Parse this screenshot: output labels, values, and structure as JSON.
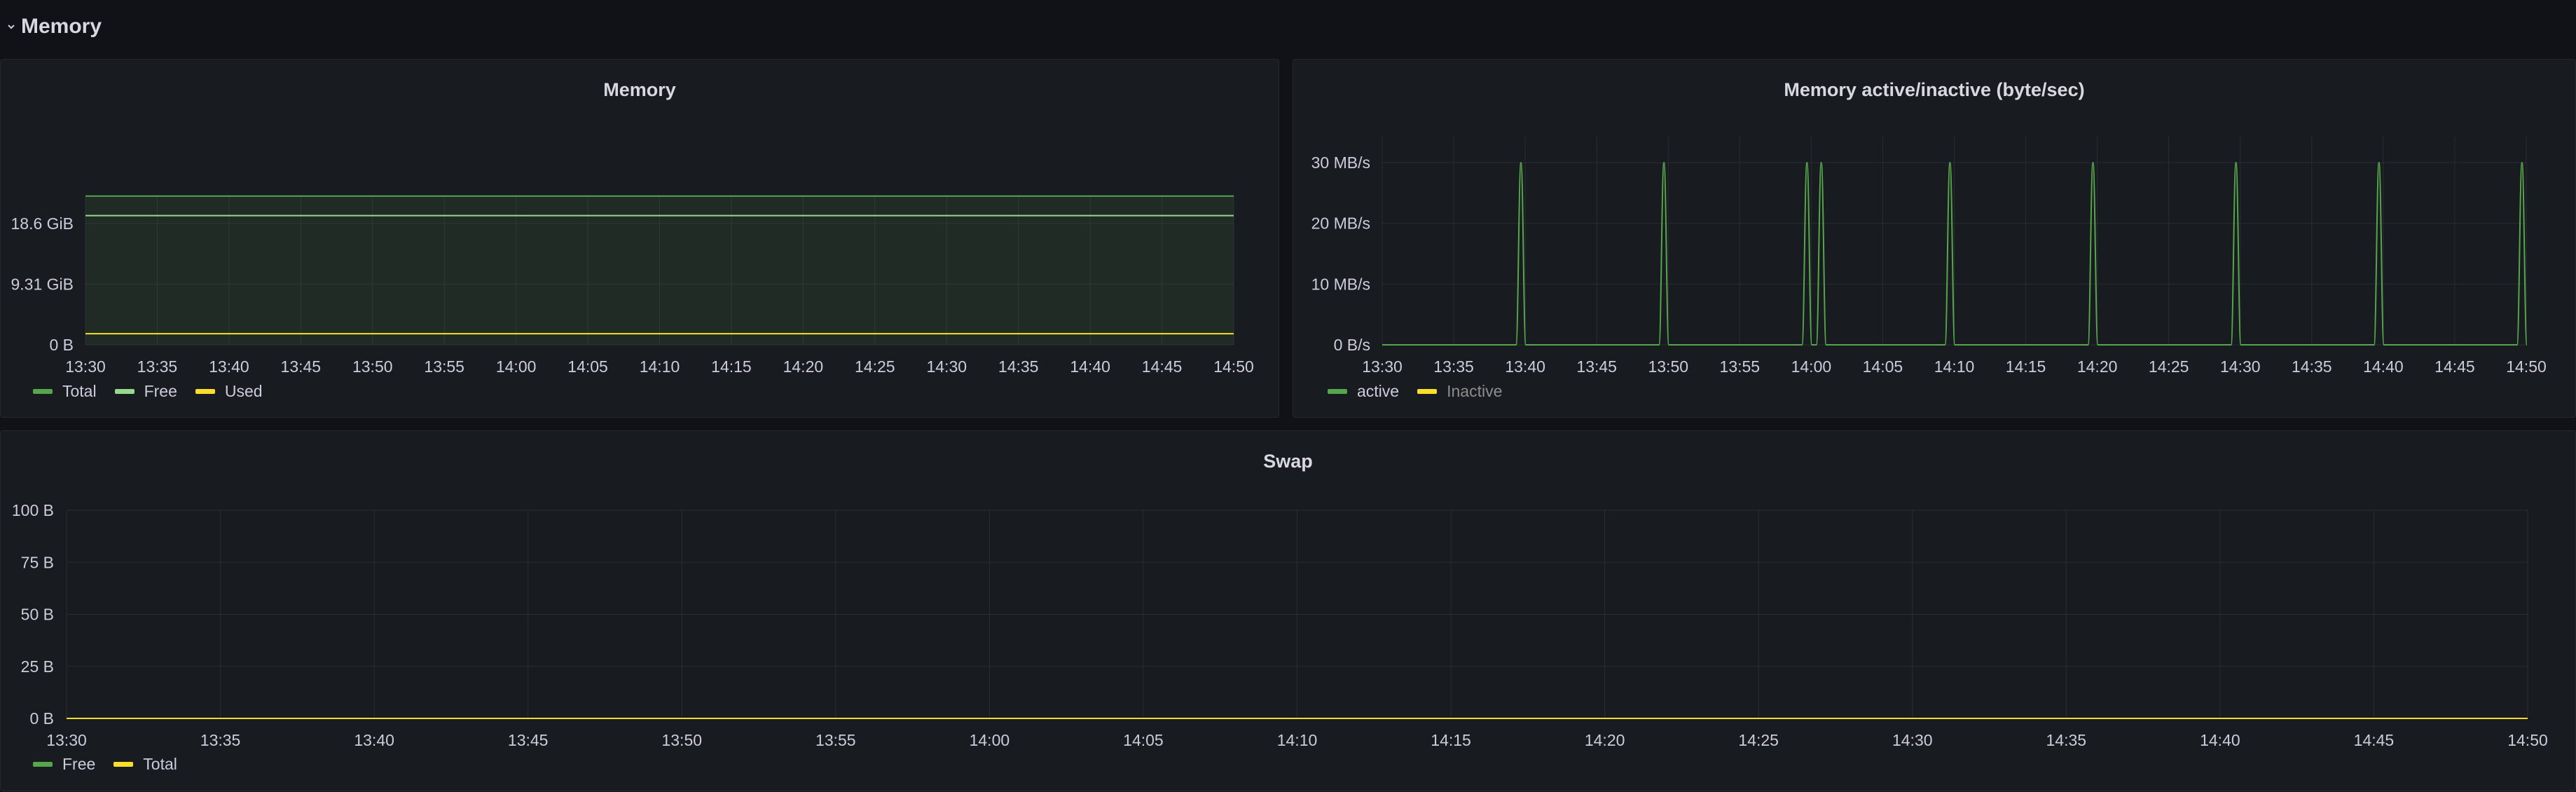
{
  "row": {
    "title": "Memory",
    "collapse_icon": "chevron-down-icon"
  },
  "colors": {
    "green": "#56a64b",
    "light_green": "#96d98d",
    "yellow": "#fade2a",
    "grid": "#2a2d33",
    "background": "#111217",
    "panel": "#181b1f"
  },
  "panels": {
    "memory": {
      "title": "Memory",
      "legend": [
        {
          "label": "Total",
          "color": "#56a64b"
        },
        {
          "label": "Free",
          "color": "#96d98d"
        },
        {
          "label": "Used",
          "color": "#fade2a"
        }
      ]
    },
    "active": {
      "title": "Memory active/inactive (byte/sec)",
      "legend": [
        {
          "label": "active",
          "color": "#56a64b"
        },
        {
          "label": "Inactive",
          "color": "#fade2a",
          "muted": true
        }
      ]
    },
    "swap": {
      "title": "Swap",
      "legend": [
        {
          "label": "Free",
          "color": "#56a64b"
        },
        {
          "label": "Total",
          "color": "#fade2a"
        }
      ]
    }
  },
  "chart_data": [
    {
      "id": "memory",
      "type": "area",
      "title": "Memory",
      "x_ticks": [
        "13:30",
        "13:35",
        "13:40",
        "13:45",
        "13:50",
        "13:55",
        "14:00",
        "14:05",
        "14:10",
        "14:15",
        "14:20",
        "14:25",
        "14:30",
        "14:35",
        "14:40",
        "14:45",
        "14:50"
      ],
      "y_ticks": [
        "0 B",
        "9.31 GiB",
        "18.6 GiB"
      ],
      "y_tick_values": [
        0,
        9.31,
        18.6
      ],
      "y_unit": "GiB",
      "ylim": [
        0,
        23.2
      ],
      "grid": true,
      "legend_position": "bottom-left",
      "series": [
        {
          "name": "Total",
          "color": "#56a64b",
          "fill": true,
          "values": [
            22.8,
            22.8
          ]
        },
        {
          "name": "Free",
          "color": "#96d98d",
          "fill": false,
          "values": [
            19.8,
            19.8
          ]
        },
        {
          "name": "Used",
          "color": "#fade2a",
          "fill": false,
          "values": [
            1.7,
            1.7
          ]
        }
      ]
    },
    {
      "id": "active",
      "type": "line",
      "title": "Memory active/inactive (byte/sec)",
      "x_ticks": [
        "13:30",
        "13:35",
        "13:40",
        "13:45",
        "13:50",
        "13:55",
        "14:00",
        "14:05",
        "14:10",
        "14:15",
        "14:20",
        "14:25",
        "14:30",
        "14:35",
        "14:40",
        "14:45",
        "14:50"
      ],
      "y_ticks": [
        "0 B/s",
        "10 MB/s",
        "20 MB/s",
        "30 MB/s"
      ],
      "y_tick_values": [
        0,
        10,
        20,
        30
      ],
      "y_unit": "MB/s",
      "ylim": [
        0,
        30
      ],
      "grid": true,
      "legend_position": "bottom-left",
      "series": [
        {
          "name": "active",
          "color": "#56a64b",
          "spikes_at_minutes": [
            9.7,
            19.7,
            29.7,
            30.7,
            39.7,
            49.7,
            59.7,
            69.7,
            79.7
          ],
          "spike_value": 30,
          "base_value": 0
        },
        {
          "name": "Inactive",
          "color": "#fade2a",
          "hidden": true,
          "values": []
        }
      ]
    },
    {
      "id": "swap",
      "type": "line",
      "title": "Swap",
      "x_ticks": [
        "13:30",
        "13:35",
        "13:40",
        "13:45",
        "13:50",
        "13:55",
        "14:00",
        "14:05",
        "14:10",
        "14:15",
        "14:20",
        "14:25",
        "14:30",
        "14:35",
        "14:40",
        "14:45",
        "14:50"
      ],
      "y_ticks": [
        "0 B",
        "25 B",
        "50 B",
        "75 B",
        "100 B"
      ],
      "y_tick_values": [
        0,
        25,
        50,
        75,
        100
      ],
      "y_unit": "B",
      "ylim": [
        0,
        100
      ],
      "grid": true,
      "legend_position": "bottom-left",
      "series": [
        {
          "name": "Free",
          "color": "#56a64b",
          "values": [
            0,
            0
          ]
        },
        {
          "name": "Total",
          "color": "#fade2a",
          "values": [
            0,
            0
          ]
        }
      ]
    }
  ]
}
